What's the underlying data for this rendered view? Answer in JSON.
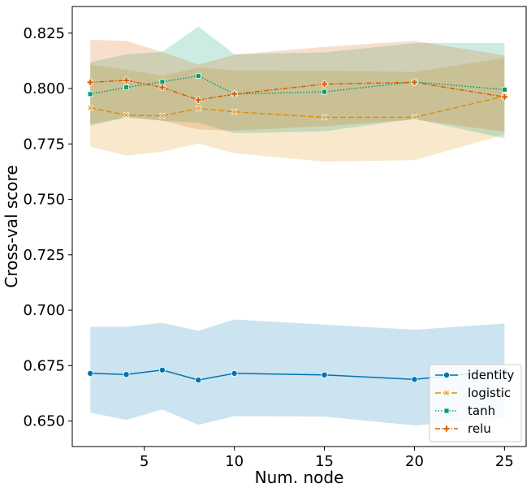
{
  "chart_data": {
    "type": "line",
    "xlabel": "Num. node",
    "ylabel": "Cross-val score",
    "xlim": [
      1,
      26.2
    ],
    "ylim": [
      0.6385,
      0.837
    ],
    "xticks": [
      5,
      10,
      15,
      20,
      25
    ],
    "yticks": [
      0.65,
      0.675,
      0.7,
      0.725,
      0.75,
      0.775,
      0.8,
      0.825
    ],
    "ytick_labels": [
      "0.650",
      "0.675",
      "0.700",
      "0.725",
      "0.750",
      "0.775",
      "0.800",
      "0.825"
    ],
    "grid": false,
    "legend_position": "lower-right",
    "x": [
      2,
      4,
      6,
      8,
      10,
      15,
      20,
      25
    ],
    "series": [
      {
        "name": "identity",
        "color": "#0173b2",
        "marker": "circle",
        "linestyle": "solid",
        "values": [
          0.6715,
          0.671,
          0.673,
          0.6685,
          0.6715,
          0.6708,
          0.6688,
          0.6728
        ],
        "lower": [
          0.6538,
          0.6505,
          0.6552,
          0.6483,
          0.6522,
          0.652,
          0.648,
          0.6512
        ],
        "upper": [
          0.6925,
          0.6925,
          0.6943,
          0.6907,
          0.6958,
          0.6935,
          0.6912,
          0.694
        ]
      },
      {
        "name": "logistic",
        "color": "#de8f05",
        "marker": "x",
        "linestyle": "dashed",
        "values": [
          0.7913,
          0.788,
          0.7877,
          0.791,
          0.7895,
          0.787,
          0.787,
          0.7965
        ],
        "lower": [
          0.7738,
          0.7697,
          0.7715,
          0.7752,
          0.7708,
          0.767,
          0.7677,
          0.7792
        ],
        "upper": [
          0.8108,
          0.8085,
          0.8058,
          0.8095,
          0.8082,
          0.808,
          0.8075,
          0.8138
        ]
      },
      {
        "name": "tanh",
        "color": "#029e73",
        "marker": "square",
        "linestyle": "dotted",
        "values": [
          0.7975,
          0.8005,
          0.803,
          0.8057,
          0.7975,
          0.7985,
          0.803,
          0.7995
        ],
        "lower": [
          0.7832,
          0.787,
          0.7855,
          0.7845,
          0.7798,
          0.7807,
          0.7863,
          0.7775
        ],
        "upper": [
          0.8118,
          0.8155,
          0.8165,
          0.828,
          0.8155,
          0.8163,
          0.8205,
          0.8205
        ]
      },
      {
        "name": "relu",
        "color": "#d55e00",
        "marker": "plus",
        "linestyle": "dashdot",
        "values": [
          0.8028,
          0.8037,
          0.8005,
          0.7948,
          0.7975,
          0.802,
          0.8028,
          0.7962
        ],
        "lower": [
          0.784,
          0.787,
          0.7855,
          0.7815,
          0.781,
          0.783,
          0.786,
          0.7805
        ],
        "upper": [
          0.822,
          0.8215,
          0.8165,
          0.8108,
          0.8152,
          0.8188,
          0.8215,
          0.815
        ]
      }
    ]
  }
}
